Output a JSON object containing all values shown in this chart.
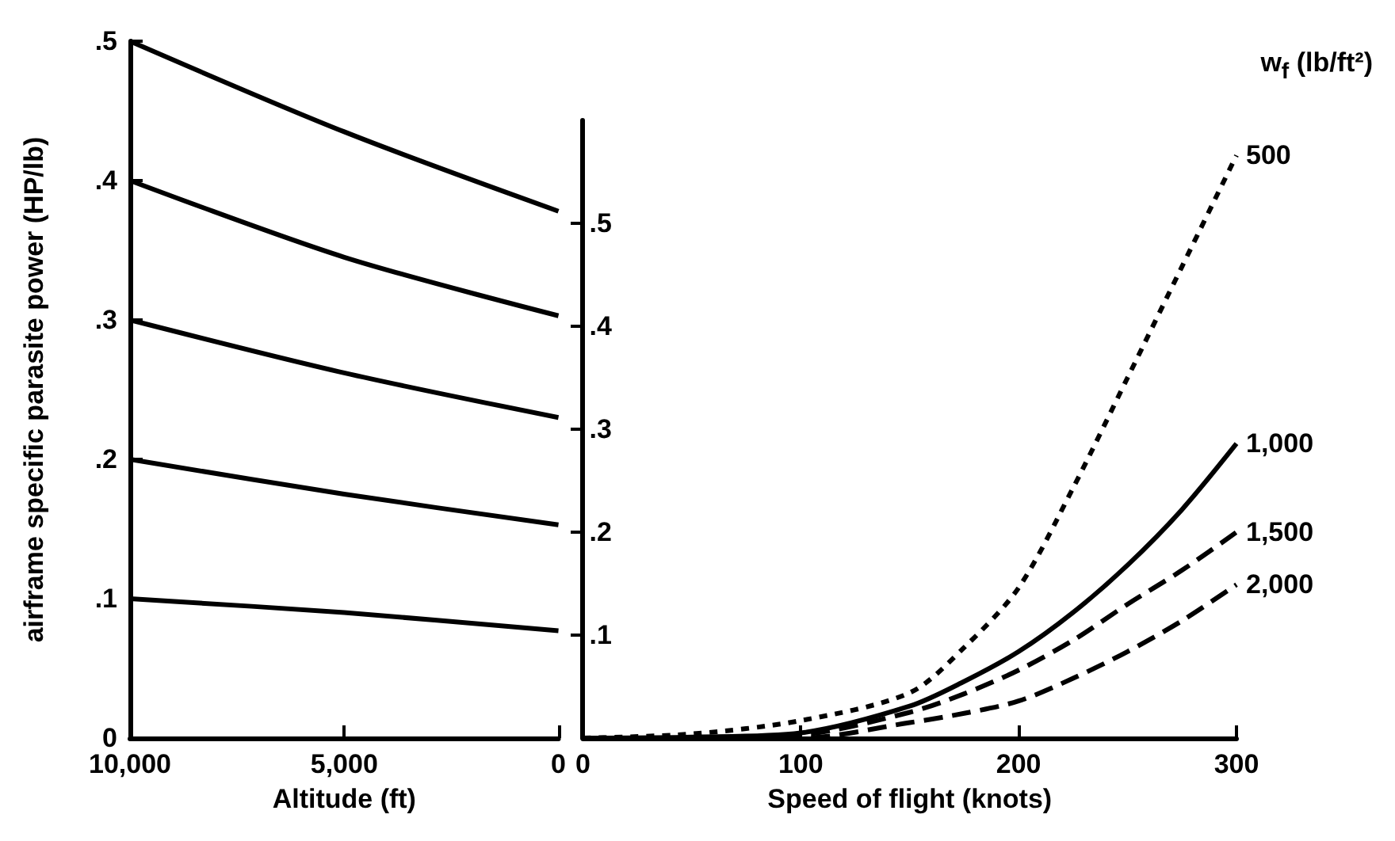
{
  "chart_data": [
    {
      "type": "line",
      "xlabel": "Altitude (ft)",
      "ylabel": "airframe specific parasite power (HP/lb)",
      "x": [
        10000,
        5000,
        0
      ],
      "series": [
        {
          "color": "#000000",
          "values": [
            0.1,
            0.09,
            0.077
          ]
        },
        {
          "color": "#000000",
          "values": [
            0.2,
            0.175,
            0.153
          ]
        },
        {
          "color": "#000000",
          "values": [
            0.3,
            0.262,
            0.23
          ]
        },
        {
          "color": "#000000",
          "values": [
            0.4,
            0.345,
            0.303
          ]
        },
        {
          "color": "#000000",
          "values": [
            0.5,
            0.435,
            0.378
          ]
        }
      ],
      "xlim": [
        10000,
        0
      ],
      "xticks": [
        {
          "value": 10000,
          "label": "10,000"
        },
        {
          "value": 5000,
          "label": "5,000"
        },
        0
      ],
      "ylim": [
        0,
        0.5
      ],
      "yticks": [
        0,
        {
          "value": 0.1,
          "label": ".1"
        },
        {
          "value": 0.2,
          "label": ".2"
        },
        {
          "value": 0.3,
          "label": ".3"
        },
        {
          "value": 0.4,
          "label": ".4"
        },
        {
          "value": 0.5,
          "label": ".5"
        }
      ],
      "grid": false,
      "legend": false,
      "marker": "none",
      "line_style": "solid"
    },
    {
      "type": "line",
      "xlabel": "Speed of flight (knots)",
      "legend_title": "w$_{f}$ (lb/ft²)",
      "x": [
        0,
        50,
        100,
        150,
        175,
        200,
        225,
        250,
        275,
        300
      ],
      "series": [
        {
          "name": "500",
          "color": "#000000",
          "line_style": "dotted",
          "values": [
            0,
            0.004,
            0.017,
            0.044,
            0.088,
            0.146,
            0.243,
            0.35,
            0.458,
            0.566
          ]
        },
        {
          "name": "1,000",
          "color": "#000000",
          "line_style": "solid",
          "values": [
            0,
            0.001,
            0.005,
            0.031,
            0.055,
            0.084,
            0.122,
            0.168,
            0.222,
            0.286
          ]
        },
        {
          "name": "1,500",
          "color": "#000000",
          "line_style": "dashed",
          "values": [
            0,
            0,
            0.003,
            0.025,
            0.043,
            0.066,
            0.095,
            0.13,
            0.163,
            0.2
          ]
        },
        {
          "name": "2,000",
          "color": "#000000",
          "line_style": "dashed",
          "values": [
            0,
            0,
            0,
            0.015,
            0.024,
            0.036,
            0.058,
            0.084,
            0.114,
            0.149
          ]
        }
      ],
      "xlim": [
        0,
        300
      ],
      "xticks": [
        0,
        100,
        200,
        300
      ],
      "ylim": [
        0,
        0.6
      ],
      "yticks": [
        {
          "value": 0.1,
          "label": ".1"
        },
        {
          "value": 0.2,
          "label": ".2"
        },
        {
          "value": 0.3,
          "label": ".3"
        },
        {
          "value": 0.4,
          "label": ".4"
        },
        {
          "value": 0.5,
          "label": ".5"
        }
      ],
      "grid": false,
      "legend": "right",
      "marker": "none"
    }
  ]
}
